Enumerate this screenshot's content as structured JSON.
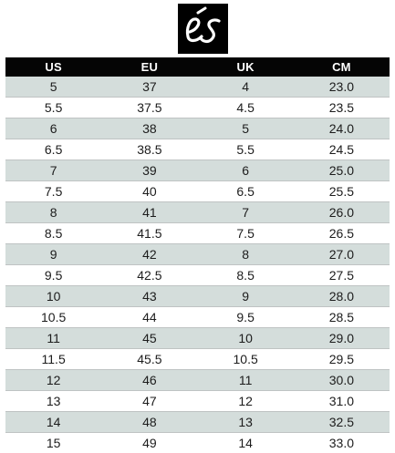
{
  "brand": {
    "logo_text": "és",
    "logo_background": "#000000",
    "logo_color": "#ffffff"
  },
  "colors": {
    "header_background": "#050505",
    "header_text": "#ffffff",
    "row_shaded": "#d4dddb",
    "row_plain": "#ffffff",
    "cell_text": "#1c1c1c"
  },
  "size_chart": {
    "headers": [
      "US",
      "EU",
      "UK",
      "CM"
    ],
    "rows": [
      [
        "5",
        "37",
        "4",
        "23.0"
      ],
      [
        "5.5",
        "37.5",
        "4.5",
        "23.5"
      ],
      [
        "6",
        "38",
        "5",
        "24.0"
      ],
      [
        "6.5",
        "38.5",
        "5.5",
        "24.5"
      ],
      [
        "7",
        "39",
        "6",
        "25.0"
      ],
      [
        "7.5",
        "40",
        "6.5",
        "25.5"
      ],
      [
        "8",
        "41",
        "7",
        "26.0"
      ],
      [
        "8.5",
        "41.5",
        "7.5",
        "26.5"
      ],
      [
        "9",
        "42",
        "8",
        "27.0"
      ],
      [
        "9.5",
        "42.5",
        "8.5",
        "27.5"
      ],
      [
        "10",
        "43",
        "9",
        "28.0"
      ],
      [
        "10.5",
        "44",
        "9.5",
        "28.5"
      ],
      [
        "11",
        "45",
        "10",
        "29.0"
      ],
      [
        "11.5",
        "45.5",
        "10.5",
        "29.5"
      ],
      [
        "12",
        "46",
        "11",
        "30.0"
      ],
      [
        "13",
        "47",
        "12",
        "31.0"
      ],
      [
        "14",
        "48",
        "13",
        "32.5"
      ],
      [
        "15",
        "49",
        "14",
        "33.0"
      ]
    ]
  }
}
